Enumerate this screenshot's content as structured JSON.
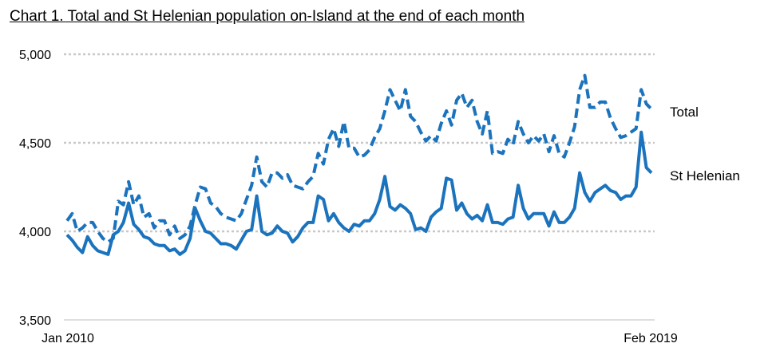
{
  "chart_data": {
    "type": "line",
    "title": "Chart 1. Total and St Helenian population on-Island at the end of each month",
    "xlabel": "",
    "ylabel": "",
    "x_tick_labels": [
      "Jan 2010",
      "Feb 2019"
    ],
    "y_ticks": [
      3500,
      4000,
      4500,
      5000
    ],
    "y_tick_labels": [
      "3,500",
      "4,000",
      "4,500",
      "5,000"
    ],
    "ylim": [
      3500,
      5000
    ],
    "grid": "horizontal dotted at 4,000, 4,500, 5,000",
    "legend": "labels at right end of lines",
    "colors": {
      "line": "#1b73bd",
      "grid": "#c8c8c8",
      "axis": "#bfbfbf"
    },
    "series": [
      {
        "name": "Total",
        "style": "dashed",
        "values": [
          4060,
          4100,
          4000,
          4020,
          4050,
          4050,
          4000,
          3960,
          3940,
          3960,
          4170,
          4150,
          4280,
          4150,
          4200,
          4080,
          4100,
          4020,
          4060,
          4060,
          3980,
          4030,
          3960,
          3980,
          4030,
          4150,
          4250,
          4240,
          4160,
          4140,
          4100,
          4080,
          4070,
          4060,
          4100,
          4180,
          4260,
          4420,
          4280,
          4250,
          4330,
          4330,
          4300,
          4320,
          4260,
          4250,
          4240,
          4280,
          4310,
          4440,
          4380,
          4520,
          4580,
          4480,
          4620,
          4470,
          4470,
          4420,
          4430,
          4460,
          4530,
          4580,
          4680,
          4800,
          4740,
          4680,
          4800,
          4650,
          4620,
          4560,
          4510,
          4540,
          4510,
          4610,
          4680,
          4600,
          4740,
          4780,
          4700,
          4740,
          4620,
          4550,
          4680,
          4440,
          4450,
          4440,
          4520,
          4490,
          4620,
          4550,
          4500,
          4540,
          4510,
          4550,
          4450,
          4540,
          4440,
          4420,
          4500,
          4590,
          4800,
          4880,
          4700,
          4700,
          4730,
          4730,
          4640,
          4580,
          4530,
          4540,
          4560,
          4580,
          4800,
          4720,
          4690
        ]
      },
      {
        "name": "St Helenian",
        "style": "solid",
        "values": [
          3980,
          3950,
          3910,
          3880,
          3970,
          3920,
          3890,
          3880,
          3870,
          3980,
          4000,
          4050,
          4160,
          4040,
          4010,
          3970,
          3960,
          3930,
          3920,
          3920,
          3890,
          3900,
          3870,
          3890,
          3960,
          4130,
          4060,
          4000,
          3990,
          3960,
          3930,
          3930,
          3920,
          3900,
          3950,
          4000,
          4010,
          4200,
          4000,
          3980,
          3990,
          4030,
          4000,
          3990,
          3940,
          3970,
          4020,
          4050,
          4050,
          4200,
          4180,
          4060,
          4100,
          4050,
          4020,
          4000,
          4040,
          4030,
          4060,
          4060,
          4100,
          4180,
          4310,
          4140,
          4120,
          4150,
          4130,
          4100,
          4010,
          4020,
          4000,
          4080,
          4110,
          4130,
          4300,
          4290,
          4120,
          4160,
          4100,
          4070,
          4090,
          4060,
          4150,
          4050,
          4050,
          4040,
          4070,
          4080,
          4260,
          4130,
          4070,
          4100,
          4100,
          4100,
          4030,
          4110,
          4050,
          4050,
          4080,
          4130,
          4330,
          4220,
          4170,
          4220,
          4240,
          4260,
          4230,
          4220,
          4180,
          4200,
          4200,
          4250,
          4560,
          4360,
          4330
        ]
      }
    ]
  }
}
